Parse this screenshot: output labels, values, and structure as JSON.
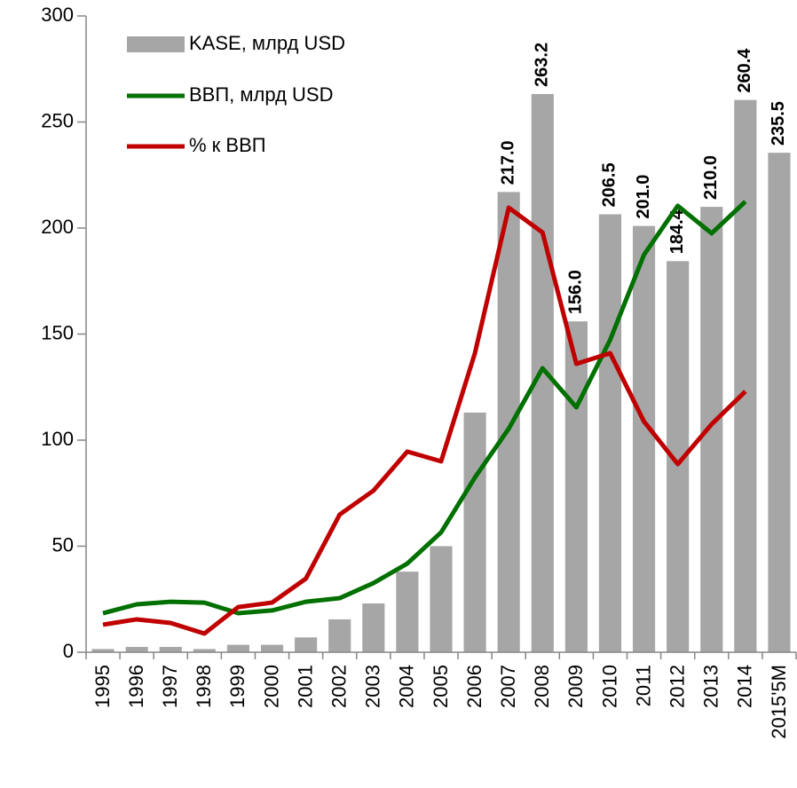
{
  "chart_data": {
    "type": "bar",
    "categories": [
      "1995",
      "1996",
      "1997",
      "1998",
      "1999",
      "2000",
      "2001",
      "2002",
      "2003",
      "2004",
      "2005",
      "2006",
      "2007",
      "2008",
      "2009",
      "2010",
      "2011",
      "2012",
      "2013",
      "2014",
      "2015'5M"
    ],
    "series": [
      {
        "name": "KASE, млрд USD",
        "type": "bar",
        "color": "#a6a6a6",
        "values": [
          1.5,
          2.5,
          2.5,
          1.5,
          3.5,
          3.5,
          7,
          15.5,
          23,
          38,
          50,
          113,
          217.0,
          263.2,
          156.0,
          206.5,
          201.0,
          184.4,
          210.0,
          260.4,
          235.5
        ],
        "value_labels": [
          null,
          null,
          null,
          null,
          null,
          null,
          null,
          null,
          null,
          null,
          null,
          null,
          "217.0",
          "263.2",
          "156.0",
          "206.5",
          "201.0",
          "184.4",
          "210.0",
          "260.4",
          "235.5"
        ]
      },
      {
        "name": "ВВП, млрд USD",
        "type": "line",
        "color": "#007000",
        "values": [
          18.4,
          22.6,
          23.8,
          23.4,
          18.4,
          19.7,
          23.8,
          25.5,
          32.6,
          41.8,
          56.5,
          82.4,
          105.4,
          133.9,
          115.5,
          147.3,
          187.4,
          210.5,
          197.5,
          212.5,
          null
        ]
      },
      {
        "name": "% к ВВП",
        "type": "line",
        "color": "#c00000",
        "values": [
          13,
          15.5,
          13.8,
          8.8,
          21.3,
          23.4,
          34.7,
          64.9,
          76.2,
          94.6,
          90,
          141,
          209.6,
          197.9,
          136,
          141,
          108.8,
          88.7,
          107.5,
          123,
          null
        ]
      }
    ],
    "ylim": [
      0,
      300
    ],
    "yticks": [
      0,
      50,
      100,
      150,
      200,
      250,
      300
    ],
    "legend": "upper-left"
  }
}
